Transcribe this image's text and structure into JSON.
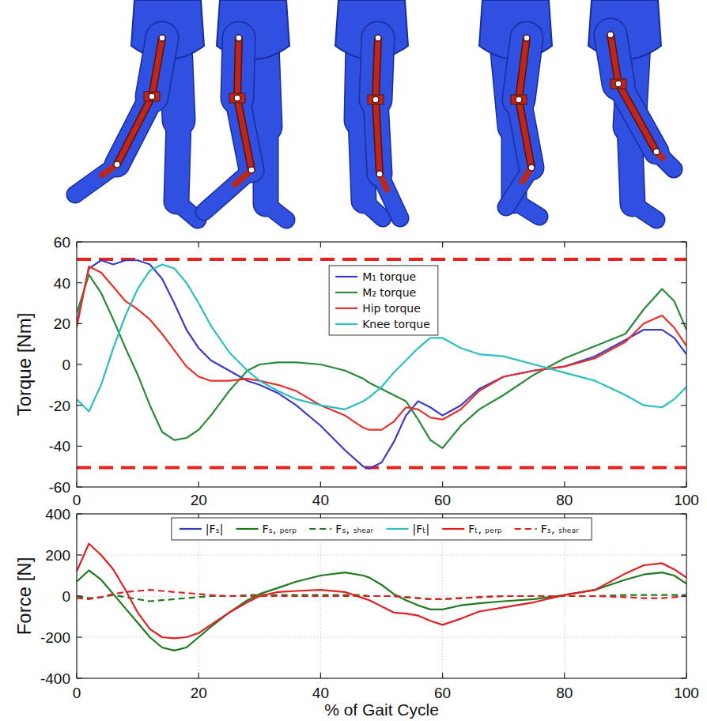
{
  "chart_data": [
    {
      "type": "line",
      "y_label": "Torque [Nm]",
      "x": [
        0,
        2,
        4,
        6,
        8,
        10,
        12,
        14,
        16,
        18,
        20,
        22,
        25,
        28,
        30,
        33,
        36,
        40,
        44,
        47,
        48,
        50,
        52,
        54,
        56,
        58,
        60,
        63,
        66,
        70,
        75,
        80,
        85,
        90,
        93,
        96,
        98,
        100
      ],
      "xlim": [
        0,
        100
      ],
      "xticks": [
        0,
        20,
        40,
        60,
        80,
        100
      ],
      "ylim": [
        -60,
        60
      ],
      "yticks": [
        -60,
        -40,
        -20,
        0,
        20,
        40,
        60
      ],
      "grid": false,
      "legend": "top",
      "reference_lines": {
        "values": [
          51.5,
          -50.5
        ],
        "color": "#e8231e",
        "line_style": "dashed"
      },
      "series": [
        {
          "name": "M₁ torque",
          "color": "#3c3cc4",
          "line_style": "solid",
          "values": [
            20,
            47,
            51,
            49,
            51,
            51,
            49,
            42,
            30,
            17,
            8,
            2,
            -3,
            -8,
            -10,
            -14,
            -20,
            -30,
            -42,
            -50,
            -51,
            -48,
            -38,
            -25,
            -18,
            -21,
            -25,
            -20,
            -12,
            -6,
            -3,
            -1,
            4,
            12,
            17,
            17,
            13,
            5
          ]
        },
        {
          "name": "M₂ torque",
          "color": "#2a8a3a",
          "line_style": "solid",
          "values": [
            25,
            44,
            35,
            22,
            8,
            -5,
            -20,
            -33,
            -37,
            -36,
            -32,
            -25,
            -13,
            -3,
            0,
            1,
            1,
            0,
            -3,
            -7,
            -9,
            -12,
            -15,
            -18,
            -27,
            -37,
            -41,
            -30,
            -22,
            -15,
            -5,
            3,
            9,
            15,
            27,
            37,
            31,
            17
          ]
        },
        {
          "name": "Hip torque",
          "color": "#e8302a",
          "line_style": "solid",
          "values": [
            18,
            48,
            45,
            38,
            31,
            27,
            22,
            15,
            7,
            -1,
            -6,
            -8,
            -8,
            -7,
            -8,
            -10,
            -13,
            -20,
            -25,
            -31,
            -32,
            -32,
            -28,
            -21,
            -22,
            -26,
            -27,
            -22,
            -13,
            -6,
            -3,
            -1,
            3,
            11,
            20,
            24,
            18,
            9
          ]
        },
        {
          "name": "Knee torque",
          "color": "#2cbfbf",
          "line_style": "solid",
          "values": [
            -17,
            -23,
            -10,
            8,
            24,
            37,
            46,
            49,
            47,
            40,
            30,
            19,
            6,
            -3,
            -8,
            -13,
            -17,
            -20,
            -22,
            -18,
            -16,
            -11,
            -4,
            2,
            8,
            13,
            13,
            8,
            5,
            4,
            0,
            -4,
            -8,
            -15,
            -20,
            -21,
            -17,
            -11
          ]
        }
      ]
    },
    {
      "type": "line",
      "x_label": "% of Gait Cycle",
      "y_label": "Force [N]",
      "x": [
        0,
        2,
        4,
        6,
        8,
        10,
        12,
        14,
        16,
        18,
        20,
        22,
        25,
        28,
        30,
        33,
        36,
        40,
        44,
        47,
        48,
        50,
        52,
        54,
        56,
        58,
        60,
        63,
        66,
        70,
        75,
        80,
        85,
        90,
        93,
        96,
        98,
        100
      ],
      "xlim": [
        0,
        100
      ],
      "xticks": [
        0,
        20,
        40,
        60,
        80,
        100
      ],
      "ylim": [
        -400,
        400
      ],
      "yticks": [
        -400,
        -200,
        0,
        200,
        400
      ],
      "grid": true,
      "legend": "top",
      "series": [
        {
          "name": "|Fₛ|",
          "color": "#3040c0",
          "line_style": "solid",
          "values": [
            null,
            null,
            null,
            null,
            null,
            null,
            null,
            null,
            null,
            null,
            null,
            null,
            null,
            null,
            null,
            null,
            null,
            null,
            null,
            null,
            null,
            null,
            null,
            null,
            null,
            null,
            null,
            null,
            null,
            null,
            null,
            null,
            null,
            null,
            null,
            null,
            null,
            null
          ]
        },
        {
          "name": "Fₛ, ₚₑᵣₚ",
          "color": "#1f7a1f",
          "line_style": "solid",
          "values": [
            70,
            125,
            80,
            10,
            -60,
            -130,
            -200,
            -250,
            -265,
            -250,
            -200,
            -150,
            -80,
            -20,
            10,
            40,
            70,
            100,
            115,
            100,
            90,
            55,
            10,
            -20,
            -45,
            -65,
            -65,
            -45,
            -35,
            -25,
            -15,
            5,
            30,
            80,
            105,
            115,
            100,
            60
          ]
        },
        {
          "name": "Fₛ, ₛₕₑₐᵣ",
          "color": "#1f7a1f",
          "line_style": "dashed",
          "values": [
            0,
            -10,
            -5,
            5,
            -5,
            -15,
            -25,
            -20,
            -15,
            -10,
            -5,
            0,
            0,
            5,
            5,
            5,
            5,
            5,
            5,
            5,
            0,
            0,
            0,
            -5,
            -10,
            -15,
            -15,
            -10,
            -5,
            0,
            0,
            0,
            0,
            5,
            5,
            5,
            5,
            5
          ]
        },
        {
          "name": "|Fₜ|",
          "color": "#30c0c0",
          "line_style": "solid",
          "values": [
            null,
            null,
            null,
            null,
            null,
            null,
            null,
            null,
            null,
            null,
            null,
            null,
            null,
            null,
            null,
            null,
            null,
            null,
            null,
            null,
            null,
            null,
            null,
            null,
            null,
            null,
            null,
            null,
            null,
            null,
            null,
            null,
            null,
            null,
            null,
            null,
            null,
            null
          ]
        },
        {
          "name": "Fₜ, ₚₑᵣₚ",
          "color": "#e02020",
          "line_style": "solid",
          "values": [
            120,
            255,
            200,
            130,
            30,
            -80,
            -160,
            -200,
            -205,
            -200,
            -180,
            -140,
            -80,
            -30,
            0,
            20,
            25,
            30,
            20,
            -10,
            -20,
            -50,
            -80,
            -85,
            -95,
            -120,
            -140,
            -110,
            -75,
            -55,
            -30,
            5,
            30,
            110,
            150,
            160,
            130,
            90
          ]
        },
        {
          "name": "Fₛ, ₛₕₑₐᵣ",
          "color": "#e02020",
          "line_style": "dashed",
          "values": [
            -10,
            -15,
            -5,
            10,
            20,
            25,
            30,
            25,
            20,
            15,
            10,
            5,
            0,
            0,
            0,
            0,
            0,
            0,
            0,
            0,
            0,
            0,
            0,
            -5,
            -10,
            -15,
            -15,
            -10,
            -5,
            0,
            0,
            0,
            0,
            -5,
            -10,
            -10,
            -5,
            0
          ]
        }
      ]
    }
  ]
}
